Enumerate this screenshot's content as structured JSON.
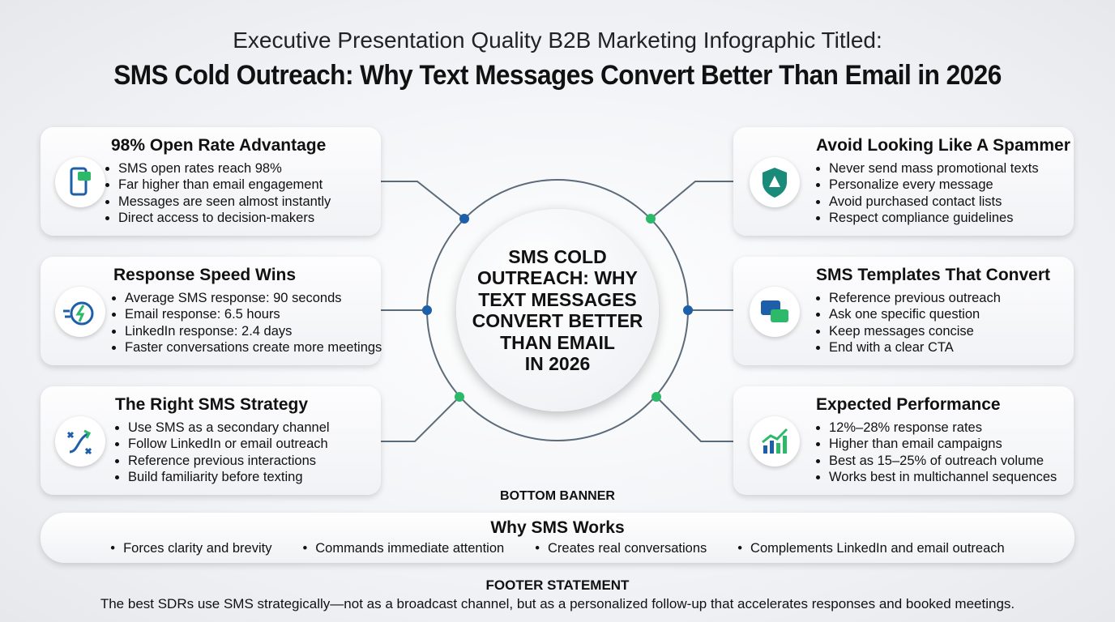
{
  "header": {
    "subtitle": "Executive Presentation Quality B2B Marketing Infographic Titled:",
    "title": "SMS Cold Outreach: Why Text Messages Convert Better Than Email in 2026"
  },
  "center": {
    "lines": [
      "SMS COLD",
      "OUTREACH: WHY",
      "TEXT MESSAGES",
      "CONVERT BETTER",
      "THAN EMAIL",
      "IN 2026"
    ]
  },
  "cards": [
    {
      "title": "98% Open Rate Advantage",
      "bullets": [
        "SMS open rates reach 98%",
        "Far higher than email engagement",
        "Messages are seen almost instantly",
        "Direct access to decision-makers"
      ]
    },
    {
      "title": "Response Speed Wins",
      "bullets": [
        "Average SMS response: 90 seconds",
        "Email response: 6.5 hours",
        "LinkedIn response: 2.4 days",
        "Faster conversations create more meetings"
      ]
    },
    {
      "title": "The Right SMS Strategy",
      "bullets": [
        "Use SMS as a secondary channel",
        "Follow LinkedIn or email outreach",
        "Reference previous interactions",
        "Build familiarity before texting"
      ]
    },
    {
      "title": "Avoid Looking Like A Spammer",
      "bullets": [
        "Never send mass promotional texts",
        "Personalize every message",
        "Avoid purchased contact lists",
        "Respect compliance guidelines"
      ]
    },
    {
      "title": "SMS Templates That Convert",
      "bullets": [
        "Reference previous outreach",
        "Ask one specific question",
        "Keep messages concise",
        "End with a clear CTA"
      ]
    },
    {
      "title": "Expected Performance",
      "bullets": [
        "12%–28% response rates",
        "Higher than email campaigns",
        "Best as 15–25% of outreach volume",
        "Works best in multichannel sequences"
      ]
    }
  ],
  "bottom_banner": {
    "label": "BOTTOM BANNER",
    "title": "Why SMS Works",
    "items": [
      "Forces clarity and brevity",
      "Commands immediate attention",
      "Creates real conversations",
      "Complements LinkedIn and email outreach"
    ]
  },
  "footer": {
    "label": "FOOTER STATEMENT",
    "text": "The best SDRs use SMS strategically—not as a broadcast channel, but as a personalized follow-up that accelerates responses and booked meetings."
  }
}
